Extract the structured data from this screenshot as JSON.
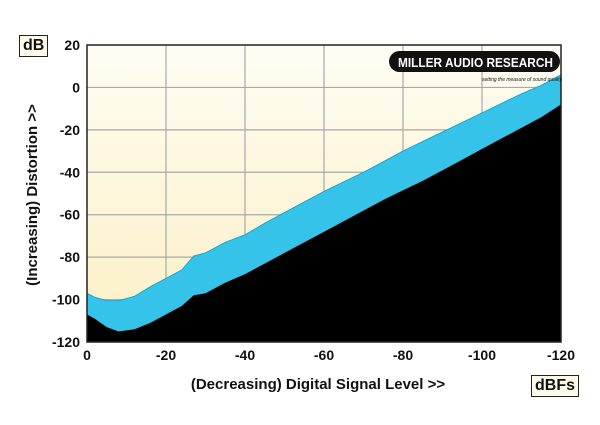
{
  "chart_data": {
    "type": "area",
    "ylabel": "(Increasing) Distortion >>",
    "xlabel": "(Decreasing) Digital Signal Level >>",
    "y_unit": "dB",
    "x_unit": "dBFs",
    "xlim": [
      0,
      -120
    ],
    "ylim": [
      -120,
      20
    ],
    "x_ticks": [
      0,
      -20,
      -40,
      -60,
      -80,
      -100,
      -120
    ],
    "x_tick_labels": [
      "0",
      "-20",
      "-40",
      "-60",
      "-80",
      "-100",
      "-120"
    ],
    "y_ticks": [
      20,
      0,
      -20,
      -40,
      -60,
      -80,
      -100,
      -120
    ],
    "y_tick_labels": [
      "20",
      "0",
      "-20",
      "-40",
      "-60",
      "-80",
      "-100",
      "-120"
    ],
    "grid": true,
    "logo_text": "MILLER AUDIO RESEARCH",
    "logo_tagline": "setting the measure of sound quality",
    "series": [
      {
        "role": "upper",
        "x": [
          0,
          -2,
          -5,
          -8,
          -12,
          -16,
          -20,
          -24,
          -27,
          -30,
          -35,
          -40,
          -45,
          -50,
          -55,
          -60,
          -65,
          -70,
          -75,
          -80,
          -85,
          -90,
          -95,
          -100,
          -105,
          -110,
          -115,
          -120
        ],
        "values": [
          -97,
          -99,
          -100.5,
          -100.5,
          -98.5,
          -94,
          -90,
          -86,
          -79.5,
          -78,
          -73,
          -69.5,
          -64,
          -59,
          -54,
          -49,
          -44.5,
          -40,
          -35,
          -30,
          -25.5,
          -21,
          -16.5,
          -12,
          -7.5,
          -3,
          1,
          6
        ]
      },
      {
        "role": "lower",
        "x": [
          0,
          -2,
          -5,
          -8,
          -12,
          -16,
          -20,
          -24,
          -27,
          -30,
          -35,
          -40,
          -45,
          -50,
          -55,
          -60,
          -65,
          -70,
          -75,
          -80,
          -85,
          -90,
          -95,
          -100,
          -105,
          -110,
          -115,
          -120
        ],
        "values": [
          -107,
          -109,
          -113,
          -115,
          -114,
          -111,
          -107,
          -103,
          -98,
          -97,
          -92,
          -88,
          -83,
          -78,
          -73,
          -68,
          -63,
          -58,
          -53,
          -48.5,
          -44,
          -39,
          -34,
          -29,
          -24,
          -19,
          -14,
          -8
        ]
      }
    ],
    "colors": {
      "plot_background": "#fdf6d7",
      "band": "#35c3ea",
      "below_band": "#000000",
      "grid": "#a8a8a8"
    }
  }
}
